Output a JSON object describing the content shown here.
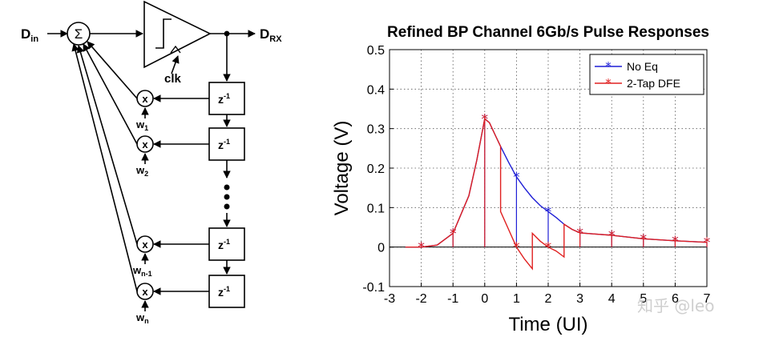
{
  "diagram": {
    "input_label_main": "D",
    "input_label_sub": "in",
    "output_label_main": "D",
    "output_label_sub": "RX",
    "summer_symbol": "Σ",
    "clock_label": "clk",
    "multiplier_symbol": "x",
    "delay_label_main": "z",
    "delay_label_sup": "-1",
    "taps": [
      {
        "weight_main": "w",
        "weight_sub": "1"
      },
      {
        "weight_main": "w",
        "weight_sub": "2"
      },
      {
        "weight_main": "w",
        "weight_sub": "n-1"
      },
      {
        "weight_main": "w",
        "weight_sub": "n"
      }
    ]
  },
  "chart_data": {
    "type": "line",
    "title": "Refined BP Channel 6Gb/s Pulse Responses",
    "xlabel": "Time (UI)",
    "ylabel": "Voltage (V)",
    "xlim": [
      -3,
      7
    ],
    "ylim": [
      -0.1,
      0.5
    ],
    "x_ticks": [
      -3,
      -2,
      -1,
      0,
      1,
      2,
      3,
      4,
      5,
      6,
      7
    ],
    "x_tick_labels": [
      "-3",
      "-2",
      "-1",
      "0",
      "1",
      "2",
      "3",
      "4",
      "5",
      "6",
      "7"
    ],
    "y_ticks": [
      -0.1,
      0,
      0.1,
      0.2,
      0.3,
      0.4,
      0.5
    ],
    "y_tick_labels": [
      "-0.1",
      "0",
      "0.1",
      "0.2",
      "0.3",
      "0.4",
      "0.5"
    ],
    "grid": true,
    "legend_position": "top-right",
    "series": [
      {
        "name": "No Eq",
        "color": "#1f1fd6",
        "curve": [
          [
            -2.5,
            0
          ],
          [
            -2,
            0
          ],
          [
            -1.5,
            0.005
          ],
          [
            -1,
            0.035
          ],
          [
            -0.5,
            0.13
          ],
          [
            -0.25,
            0.22
          ],
          [
            0,
            0.325
          ],
          [
            0.15,
            0.315
          ],
          [
            0.35,
            0.28
          ],
          [
            0.5,
            0.255
          ],
          [
            0.75,
            0.215
          ],
          [
            1,
            0.178
          ],
          [
            1.25,
            0.15
          ],
          [
            1.5,
            0.125
          ],
          [
            1.75,
            0.105
          ],
          [
            2,
            0.09
          ],
          [
            2.25,
            0.075
          ],
          [
            2.5,
            0.058
          ],
          [
            2.75,
            0.045
          ],
          [
            3,
            0.036
          ],
          [
            3.5,
            0.033
          ],
          [
            4,
            0.03
          ],
          [
            5,
            0.021
          ],
          [
            6,
            0.016
          ],
          [
            7,
            0.012
          ]
        ],
        "samples_x": [
          -2,
          -1,
          0,
          1,
          2,
          3,
          4,
          5,
          6,
          7
        ],
        "samples_y": [
          0,
          0.035,
          0.325,
          0.178,
          0.09,
          0.036,
          0.03,
          0.021,
          0.016,
          0.012
        ]
      },
      {
        "name": "2-Tap DFE",
        "color": "#e02020",
        "curve": [
          [
            -2.5,
            0
          ],
          [
            -2,
            0
          ],
          [
            -1.5,
            0.005
          ],
          [
            -1,
            0.035
          ],
          [
            -0.5,
            0.13
          ],
          [
            -0.25,
            0.22
          ],
          [
            0,
            0.325
          ],
          [
            0.15,
            0.315
          ],
          [
            0.35,
            0.28
          ],
          [
            0.5,
            0.255
          ],
          [
            0.5,
            0.09
          ],
          [
            0.75,
            0.045
          ],
          [
            1,
            0
          ],
          [
            1.25,
            -0.03
          ],
          [
            1.5,
            -0.055
          ],
          [
            1.5,
            0.035
          ],
          [
            1.75,
            0.015
          ],
          [
            2,
            0
          ],
          [
            2.25,
            -0.01
          ],
          [
            2.5,
            -0.025
          ],
          [
            2.5,
            0.058
          ],
          [
            2.75,
            0.045
          ],
          [
            3,
            0.036
          ],
          [
            3.5,
            0.033
          ],
          [
            4,
            0.03
          ],
          [
            5,
            0.021
          ],
          [
            6,
            0.016
          ],
          [
            7,
            0.012
          ]
        ],
        "samples_x": [
          -2,
          -1,
          0,
          1,
          2,
          3,
          4,
          5,
          6,
          7
        ],
        "samples_y": [
          0,
          0.035,
          0.325,
          0,
          0,
          0.036,
          0.03,
          0.021,
          0.016,
          0.012
        ]
      }
    ]
  },
  "watermark": "知乎 @leo"
}
